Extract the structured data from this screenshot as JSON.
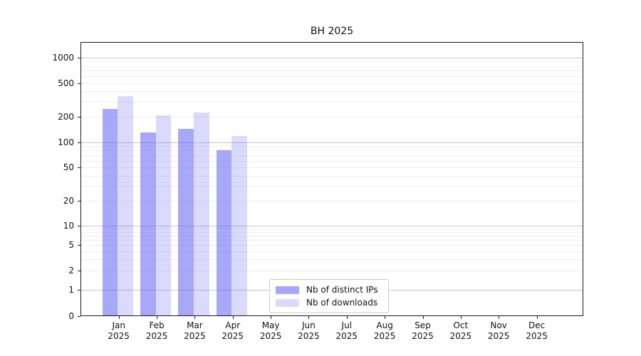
{
  "title": "BH 2025",
  "chart_data": {
    "type": "bar",
    "title": "BH 2025",
    "categories": [
      "Jan 2025",
      "Feb 2025",
      "Mar 2025",
      "Apr 2025",
      "May 2025",
      "Jun 2025",
      "Jul 2025",
      "Aug 2025",
      "Sep 2025",
      "Oct 2025",
      "Nov 2025",
      "Dec 2025"
    ],
    "series": [
      {
        "name": "Nb of distinct IPs",
        "color": "#6161f2",
        "alpha": 0.55,
        "rendered_color": "#a8a8f8",
        "values": [
          250,
          130,
          145,
          80,
          0,
          0,
          0,
          0,
          0,
          0,
          0,
          0
        ]
      },
      {
        "name": "Nb of downloads",
        "color": "#6161f2",
        "alpha": 0.23,
        "rendered_color": "#d8d8fa",
        "values": [
          355,
          210,
          225,
          118,
          0,
          0,
          0,
          0,
          0,
          0,
          0,
          0
        ]
      }
    ],
    "yscale": "symlog",
    "yticks": [
      0,
      1,
      2,
      5,
      10,
      20,
      50,
      100,
      200,
      500,
      1000
    ],
    "ylim": [
      0,
      1500
    ],
    "xlabel": "",
    "ylabel": "",
    "grid": "horizontal",
    "legend_position": "inside-bottom-center"
  },
  "colors": {
    "background": "#ffffff",
    "spine": "#1a1a1a",
    "major_grid": "#c6c6c6",
    "minor_grid": "#eeeeee",
    "text": "#111111"
  }
}
